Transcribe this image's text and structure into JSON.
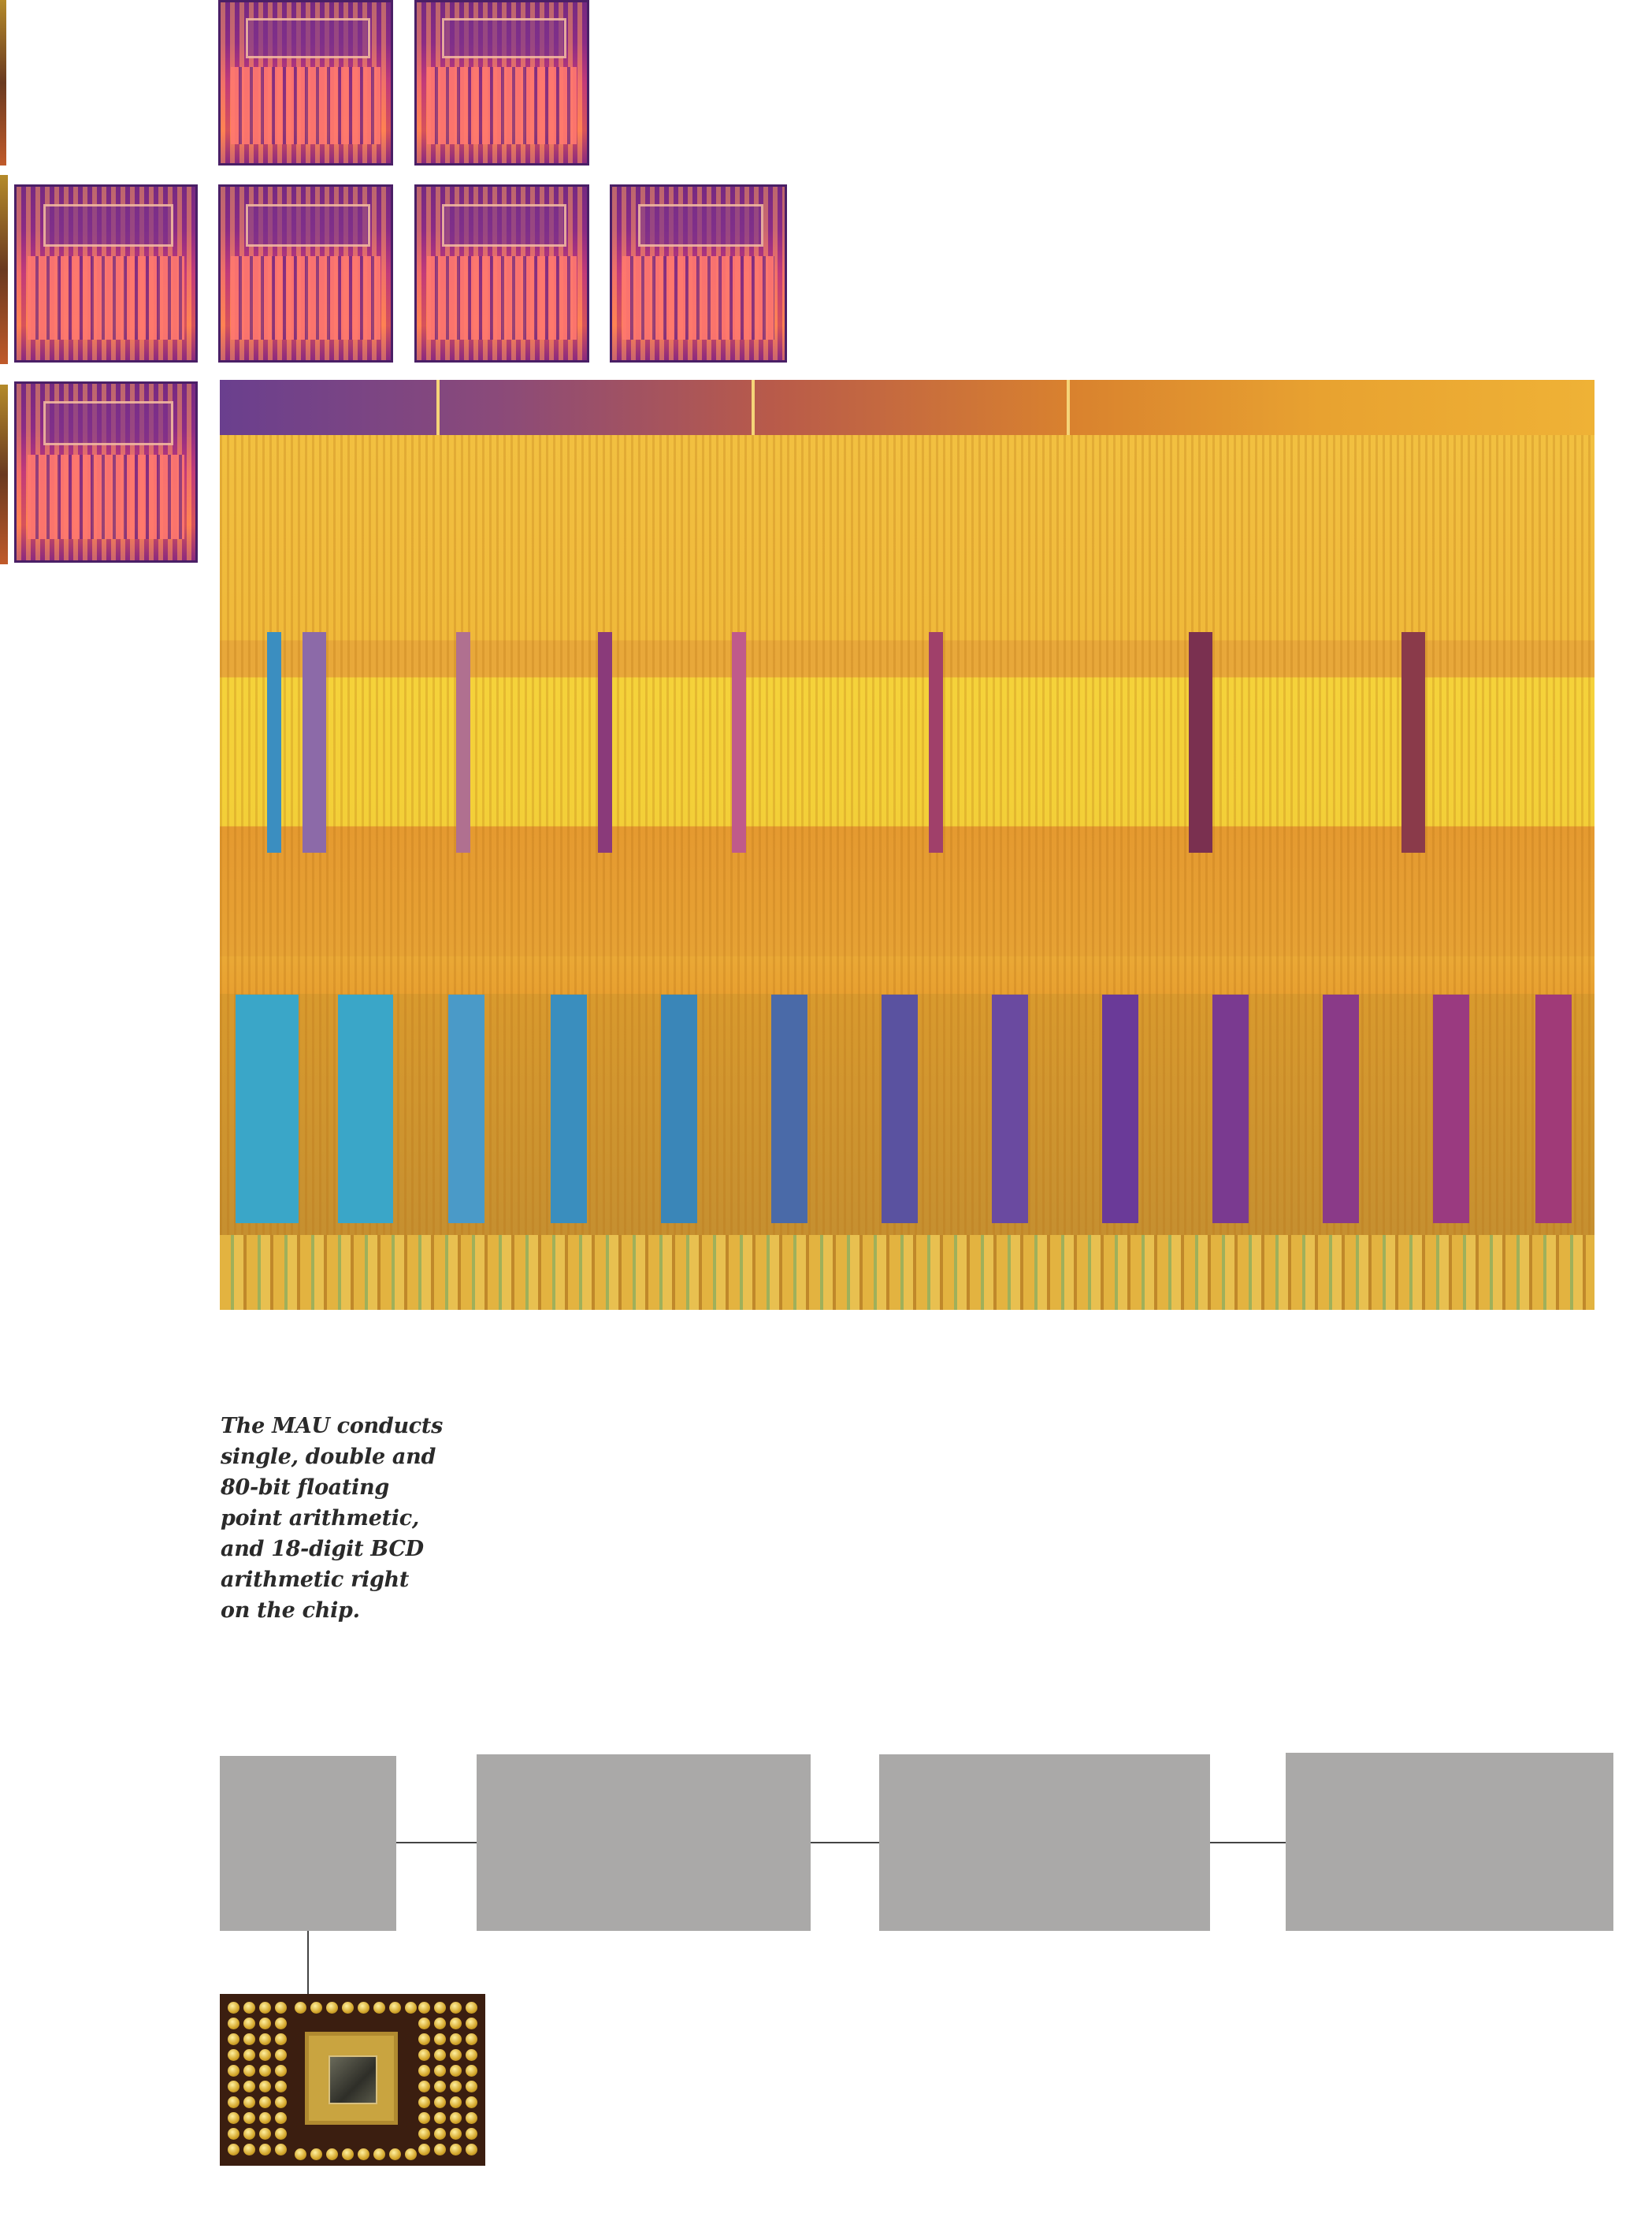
{
  "caption": {
    "lines": [
      "The MAU conducts",
      "single, double and",
      "80-bit floating",
      "point arithmetic,",
      "and 18-digit BCD",
      "arithmetic right",
      "on the chip."
    ]
  },
  "figures": {
    "die_tiles": 7,
    "main_photo": "chip-die-micrograph",
    "package_photo": "chip-package"
  },
  "colors": {
    "tile_purple": "#6a2a86",
    "tile_pink": "#ff6a4a",
    "die_yellow": "#f5d23a",
    "die_orange": "#e59a30",
    "gray_box": "#aaa9a8"
  }
}
